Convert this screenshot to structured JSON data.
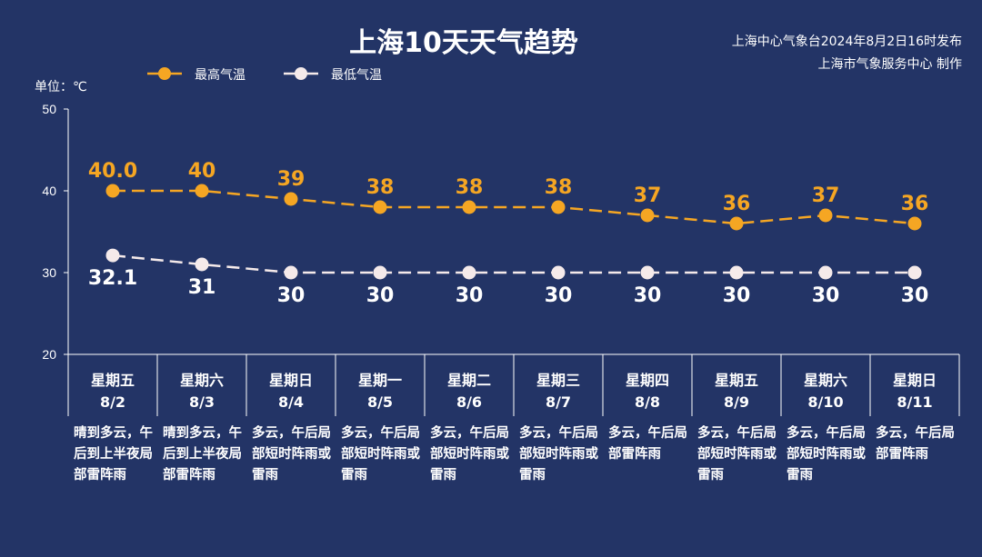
{
  "header": {
    "title": "上海10天天气趋势",
    "source_line1": "上海中心气象台2024年8月2日16时发布",
    "source_line2": "上海市气象服务中心 制作",
    "unit": "单位：℃"
  },
  "colors": {
    "background": "#233466",
    "high": "#F5A623",
    "low": "#F5EAEA",
    "axis": "#FFFFFF"
  },
  "chart_data": {
    "type": "line",
    "title": "上海10天天气趋势",
    "ylabel": "单位：℃",
    "ylim": [
      20,
      50
    ],
    "yticks": [
      20,
      30,
      40,
      50
    ],
    "grid": false,
    "legend": "top-left",
    "categories": [
      "8/2",
      "8/3",
      "8/4",
      "8/5",
      "8/6",
      "8/7",
      "8/8",
      "8/9",
      "8/10",
      "8/11"
    ],
    "weekdays": [
      "星期五",
      "星期六",
      "星期日",
      "星期一",
      "星期二",
      "星期三",
      "星期四",
      "星期五",
      "星期六",
      "星期日"
    ],
    "series": [
      {
        "name": "最高气温",
        "values": [
          40.0,
          40,
          39,
          38,
          38,
          38,
          37,
          36,
          37,
          36
        ],
        "labels": [
          "40.0",
          "40",
          "39",
          "38",
          "38",
          "38",
          "37",
          "36",
          "37",
          "36"
        ],
        "color": "#F5A623",
        "line_style": "dashed"
      },
      {
        "name": "最低气温",
        "values": [
          32.1,
          31,
          30,
          30,
          30,
          30,
          30,
          30,
          30,
          30
        ],
        "labels": [
          "32.1",
          "31",
          "30",
          "30",
          "30",
          "30",
          "30",
          "30",
          "30",
          "30"
        ],
        "color": "#F5EAEA",
        "line_style": "dashed"
      }
    ],
    "descriptions": [
      "晴到多云，午后到上半夜局部雷阵雨",
      "晴到多云，午后到上半夜局部雷阵雨",
      "多云，午后局部短时阵雨或雷雨",
      "多云，午后局部短时阵雨或雷雨",
      "多云，午后局部短时阵雨或雷雨",
      "多云，午后局部短时阵雨或雷雨",
      "多云，午后局部雷阵雨",
      "多云，午后局部短时阵雨或雷雨",
      "多云，午后局部短时阵雨或雷雨",
      "多云，午后局部雷阵雨"
    ]
  }
}
